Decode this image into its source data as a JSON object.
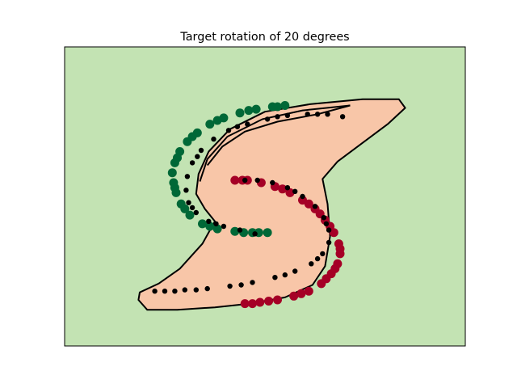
{
  "chart_data": {
    "type": "scatter",
    "title": "Target rotation of 20 degrees",
    "xlabel": "",
    "ylabel": "",
    "xticks": [],
    "yticks": [],
    "grid": false,
    "legend": "none",
    "xlim": [
      -1.6,
      1.6
    ],
    "ylim": [
      -1.2,
      1.2
    ],
    "colors": {
      "background_region": "#c3e3b3",
      "decision_region": "#f8c6a8",
      "boundary": "#000000",
      "class_a": "#006837",
      "class_b": "#a50026",
      "predicted": "#000000"
    },
    "decision_region": [
      [
        -1.01,
        -0.83
      ],
      [
        -0.94,
        -0.91
      ],
      [
        -0.7,
        -0.91
      ],
      [
        -0.4,
        -0.89
      ],
      [
        -0.12,
        -0.86
      ],
      [
        0.16,
        -0.81
      ],
      [
        0.38,
        -0.71
      ],
      [
        0.48,
        -0.56
      ],
      [
        0.52,
        -0.32
      ],
      [
        0.5,
        -0.06
      ],
      [
        0.46,
        0.14
      ],
      [
        0.58,
        0.28
      ],
      [
        0.78,
        0.43
      ],
      [
        0.98,
        0.58
      ],
      [
        1.12,
        0.71
      ],
      [
        1.07,
        0.78
      ],
      [
        0.78,
        0.78
      ],
      [
        0.36,
        0.74
      ],
      [
        0.0,
        0.68
      ],
      [
        -0.28,
        0.54
      ],
      [
        -0.45,
        0.36
      ],
      [
        -0.53,
        0.18
      ],
      [
        -0.55,
        0.02
      ],
      [
        -0.48,
        -0.1
      ],
      [
        -0.4,
        -0.2
      ],
      [
        -0.5,
        -0.38
      ],
      [
        -0.68,
        -0.58
      ],
      [
        -0.85,
        -0.7
      ],
      [
        -1.0,
        -0.77
      ]
    ],
    "inner_boundary": [
      [
        -0.52,
        0.12
      ],
      [
        -0.46,
        0.3
      ],
      [
        -0.3,
        0.48
      ],
      [
        -0.02,
        0.62
      ],
      [
        0.3,
        0.69
      ],
      [
        0.68,
        0.73
      ],
      [
        0.42,
        0.66
      ],
      [
        0.1,
        0.6
      ],
      [
        -0.16,
        0.52
      ],
      [
        -0.34,
        0.4
      ],
      [
        -0.46,
        0.25
      ]
    ],
    "series": [
      {
        "points": [
          [
            -0.74,
            0.19
          ],
          [
            -0.72,
            0.27
          ],
          [
            -0.68,
            0.36
          ],
          [
            -0.62,
            0.44
          ],
          [
            -0.54,
            0.51
          ],
          [
            -0.44,
            0.58
          ],
          [
            -0.33,
            0.63
          ],
          [
            -0.2,
            0.67
          ],
          [
            -0.07,
            0.7
          ],
          [
            0.06,
            0.72
          ],
          [
            0.16,
            0.73
          ],
          [
            -0.73,
            0.11
          ],
          [
            -0.71,
            0.03
          ],
          [
            -0.67,
            -0.06
          ],
          [
            -0.6,
            -0.15
          ],
          [
            -0.5,
            -0.22
          ],
          [
            -0.38,
            -0.26
          ],
          [
            -0.24,
            -0.28
          ],
          [
            -0.1,
            -0.29
          ],
          [
            0.02,
            -0.29
          ],
          [
            -0.7,
            0.31
          ],
          [
            -0.58,
            0.48
          ],
          [
            -0.38,
            0.61
          ],
          [
            -0.13,
            0.69
          ],
          [
            0.1,
            0.72
          ],
          [
            -0.72,
            0.07
          ],
          [
            -0.64,
            -0.1
          ],
          [
            -0.44,
            -0.24
          ],
          [
            -0.17,
            -0.29
          ],
          [
            -0.05,
            -0.29
          ]
        ]
      },
      {
        "points": [
          [
            -0.24,
            0.13
          ],
          [
            -0.14,
            0.13
          ],
          [
            -0.03,
            0.11
          ],
          [
            0.08,
            0.08
          ],
          [
            0.2,
            0.03
          ],
          [
            0.3,
            -0.03
          ],
          [
            0.4,
            -0.1
          ],
          [
            0.48,
            -0.19
          ],
          [
            0.55,
            -0.29
          ],
          [
            0.59,
            -0.38
          ],
          [
            0.6,
            -0.46
          ],
          [
            0.58,
            -0.54
          ],
          [
            0.53,
            -0.62
          ],
          [
            0.45,
            -0.7
          ],
          [
            0.35,
            -0.76
          ],
          [
            0.23,
            -0.8
          ],
          [
            0.1,
            -0.83
          ],
          [
            -0.04,
            -0.85
          ],
          [
            -0.16,
            -0.86
          ],
          [
            0.35,
            -0.06
          ],
          [
            0.52,
            -0.24
          ],
          [
            0.6,
            -0.42
          ],
          [
            0.49,
            -0.66
          ],
          [
            0.29,
            -0.78
          ],
          [
            0.03,
            -0.84
          ],
          [
            -0.1,
            -0.86
          ],
          [
            0.14,
            0.06
          ],
          [
            0.44,
            -0.14
          ],
          [
            0.56,
            -0.58
          ],
          [
            -0.18,
            0.13
          ]
        ]
      },
      {
        "points": [
          [
            -0.62,
            0.16
          ],
          [
            -0.58,
            0.27
          ],
          [
            -0.51,
            0.37
          ],
          [
            -0.41,
            0.46
          ],
          [
            -0.29,
            0.53
          ],
          [
            -0.14,
            0.58
          ],
          [
            0.02,
            0.62
          ],
          [
            0.18,
            0.65
          ],
          [
            0.34,
            0.66
          ],
          [
            0.5,
            0.66
          ],
          [
            0.62,
            0.64
          ],
          [
            -0.63,
            0.05
          ],
          [
            -0.61,
            -0.05
          ],
          [
            -0.55,
            -0.13
          ],
          [
            -0.45,
            -0.2
          ],
          [
            -0.33,
            -0.24
          ],
          [
            -0.2,
            -0.27
          ],
          [
            -0.08,
            -0.3
          ],
          [
            -0.16,
            0.13
          ],
          [
            -0.06,
            0.13
          ],
          [
            0.06,
            0.11
          ],
          [
            0.18,
            0.07
          ],
          [
            0.3,
            0.0
          ],
          [
            0.4,
            -0.08
          ],
          [
            0.47,
            -0.17
          ],
          [
            0.51,
            -0.27
          ],
          [
            0.51,
            -0.37
          ],
          [
            0.46,
            -0.46
          ],
          [
            0.37,
            -0.54
          ],
          [
            0.24,
            -0.6
          ],
          [
            0.08,
            -0.65
          ],
          [
            -0.1,
            -0.69
          ],
          [
            -0.28,
            -0.72
          ],
          [
            -0.46,
            -0.74
          ],
          [
            -0.64,
            -0.75
          ],
          [
            -0.8,
            -0.76
          ],
          [
            -0.88,
            -0.76
          ],
          [
            -0.54,
            0.32
          ],
          [
            -0.22,
            0.56
          ],
          [
            0.1,
            0.64
          ],
          [
            0.42,
            0.66
          ],
          [
            -0.58,
            -0.09
          ],
          [
            -0.39,
            -0.22
          ],
          [
            0.24,
            0.04
          ],
          [
            0.49,
            -0.22
          ],
          [
            0.42,
            -0.5
          ],
          [
            0.16,
            -0.63
          ],
          [
            -0.19,
            -0.71
          ],
          [
            -0.55,
            -0.75
          ],
          [
            -0.72,
            -0.76
          ]
        ]
      }
    ]
  }
}
